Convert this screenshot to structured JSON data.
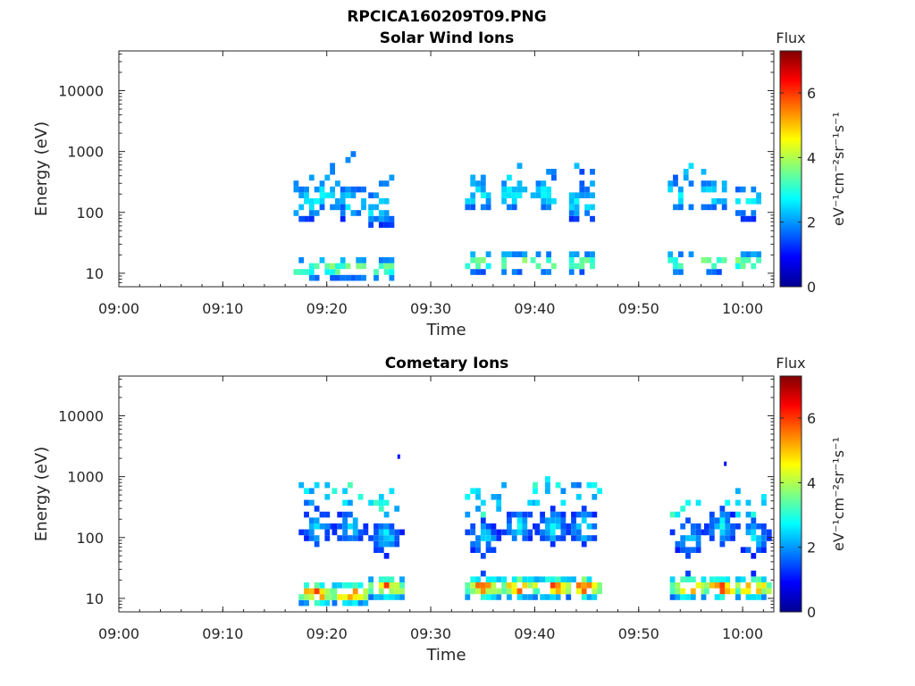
{
  "figure": {
    "title": "RPCICA160209T09.PNG"
  },
  "chart_data": [
    {
      "type": "heatmap",
      "title": "Solar Wind Ions",
      "xlabel": "Time",
      "ylabel": "Energy (eV)",
      "xlim": [
        "09:00",
        "10:03"
      ],
      "ylim": [
        6,
        45000
      ],
      "yscale": "log",
      "x_ticks": [
        "09:00",
        "09:10",
        "09:20",
        "09:30",
        "09:40",
        "09:50",
        "10:00"
      ],
      "y_ticks": [
        "10",
        "100",
        "1000",
        "10000"
      ],
      "colorbar": {
        "title": "Flux",
        "label": "eV⁻¹cm⁻²sr⁻¹s⁻¹",
        "range": [
          0,
          7.3
        ],
        "ticks": [
          "0",
          "2",
          "4",
          "6"
        ],
        "colormap": "jet"
      },
      "bursts": [
        {
          "t": 18.0,
          "low": 12,
          "mid": 150,
          "max": 550,
          "peak": 3.8,
          "style": "sw"
        },
        {
          "t": 20.5,
          "low": 12,
          "mid": 200,
          "max": 1000,
          "peak": 3.9,
          "style": "sw"
        },
        {
          "t": 22.5,
          "low": 12,
          "mid": 150,
          "max": 1000,
          "peak": 3.8,
          "style": "sw"
        },
        {
          "t": 25.2,
          "low": 12,
          "mid": 120,
          "max": 400,
          "peak": 3.6,
          "style": "sw"
        },
        {
          "t": 34.5,
          "low": 15,
          "mid": 200,
          "max": 400,
          "peak": 3.6,
          "style": "sw"
        },
        {
          "t": 38.0,
          "low": 15,
          "mid": 200,
          "max": 800,
          "peak": 3.6,
          "style": "sw"
        },
        {
          "t": 40.8,
          "low": 15,
          "mid": 200,
          "max": 600,
          "peak": 3.6,
          "style": "sw"
        },
        {
          "t": 44.5,
          "low": 15,
          "mid": 150,
          "max": 800,
          "peak": 3.6,
          "style": "sw"
        },
        {
          "t": 54.0,
          "low": 15,
          "mid": 200,
          "max": 600,
          "peak": 3.6,
          "style": "sw"
        },
        {
          "t": 57.2,
          "low": 15,
          "mid": 200,
          "max": 700,
          "peak": 3.6,
          "style": "sw"
        },
        {
          "t": 60.5,
          "low": 15,
          "mid": 150,
          "max": 400,
          "peak": 3.6,
          "style": "sw"
        }
      ]
    },
    {
      "type": "heatmap",
      "title": "Cometary Ions",
      "xlabel": "Time",
      "ylabel": "Energy (eV)",
      "xlim": [
        "09:00",
        "10:03"
      ],
      "ylim": [
        6,
        45000
      ],
      "yscale": "log",
      "x_ticks": [
        "09:00",
        "09:10",
        "09:20",
        "09:30",
        "09:40",
        "09:50",
        "10:00"
      ],
      "y_ticks": [
        "10",
        "100",
        "1000",
        "10000"
      ],
      "colorbar": {
        "title": "Flux",
        "label": "eV⁻¹cm⁻²sr⁻¹s⁻¹",
        "range": [
          0,
          7.3
        ],
        "ticks": [
          "0",
          "2",
          "4",
          "6"
        ],
        "colormap": "jet"
      },
      "bursts": [
        {
          "t": 18.8,
          "low": 12,
          "mid": 150,
          "max": 800,
          "peak": 6.0,
          "style": "com"
        },
        {
          "t": 22.0,
          "low": 12,
          "mid": 150,
          "max": 800,
          "peak": 5.8,
          "style": "com"
        },
        {
          "t": 25.5,
          "low": 15,
          "mid": 100,
          "max": 600,
          "peak": 5.5,
          "style": "com"
        },
        {
          "t": 34.8,
          "low": 15,
          "mid": 100,
          "max": 600,
          "peak": 5.7,
          "style": "com"
        },
        {
          "t": 38.3,
          "low": 15,
          "mid": 150,
          "max": 900,
          "peak": 5.7,
          "style": "com"
        },
        {
          "t": 41.5,
          "low": 15,
          "mid": 150,
          "max": 1100,
          "peak": 5.7,
          "style": "com"
        },
        {
          "t": 44.5,
          "low": 15,
          "mid": 150,
          "max": 800,
          "peak": 5.7,
          "style": "com"
        },
        {
          "t": 54.5,
          "low": 15,
          "mid": 100,
          "max": 400,
          "peak": 5.7,
          "style": "com"
        },
        {
          "t": 57.8,
          "low": 15,
          "mid": 150,
          "max": 600,
          "peak": 5.7,
          "style": "com"
        },
        {
          "t": 60.8,
          "low": 15,
          "mid": 100,
          "max": 500,
          "peak": 5.7,
          "style": "com"
        }
      ],
      "sparse": [
        {
          "t": 26.8,
          "e": 2100,
          "v": 1.0
        },
        {
          "t": 58.2,
          "e": 1600,
          "v": 1.0
        }
      ]
    }
  ]
}
